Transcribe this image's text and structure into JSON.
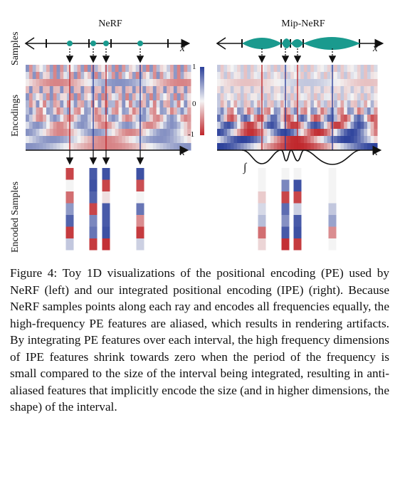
{
  "figure": {
    "left_title": "NeRF",
    "right_title": "Mip-NeRF",
    "row_labels": [
      "Samples",
      "Encodings",
      "Encoded Samples"
    ],
    "axis_var": "x",
    "colorbar_ticks": [
      "1",
      "0",
      "-1"
    ],
    "integral_symbol": "∫",
    "colors": {
      "sample_dot": "#1a9a8e",
      "positive": "#2a3f9a",
      "negative": "#c0262b",
      "neutral": "#e2e2e2"
    }
  },
  "caption": "Figure 4: Toy 1D visualizations of the positional encoding (PE) used by NeRF (left) and our integrated positional encoding (IPE) (right). Because NeRF samples points along each ray and encodes all frequencies equally, the high-frequency PE features are aliased, which results in rendering artifacts. By integrating PE features over each interval, the high frequency dimensions of IPE features shrink towards zero when the period of the frequency is small compared to the size of the interval being integrated, resulting in anti-aliased features that implicitly encode the size (and in higher dimensions, the shape) of the interval."
}
